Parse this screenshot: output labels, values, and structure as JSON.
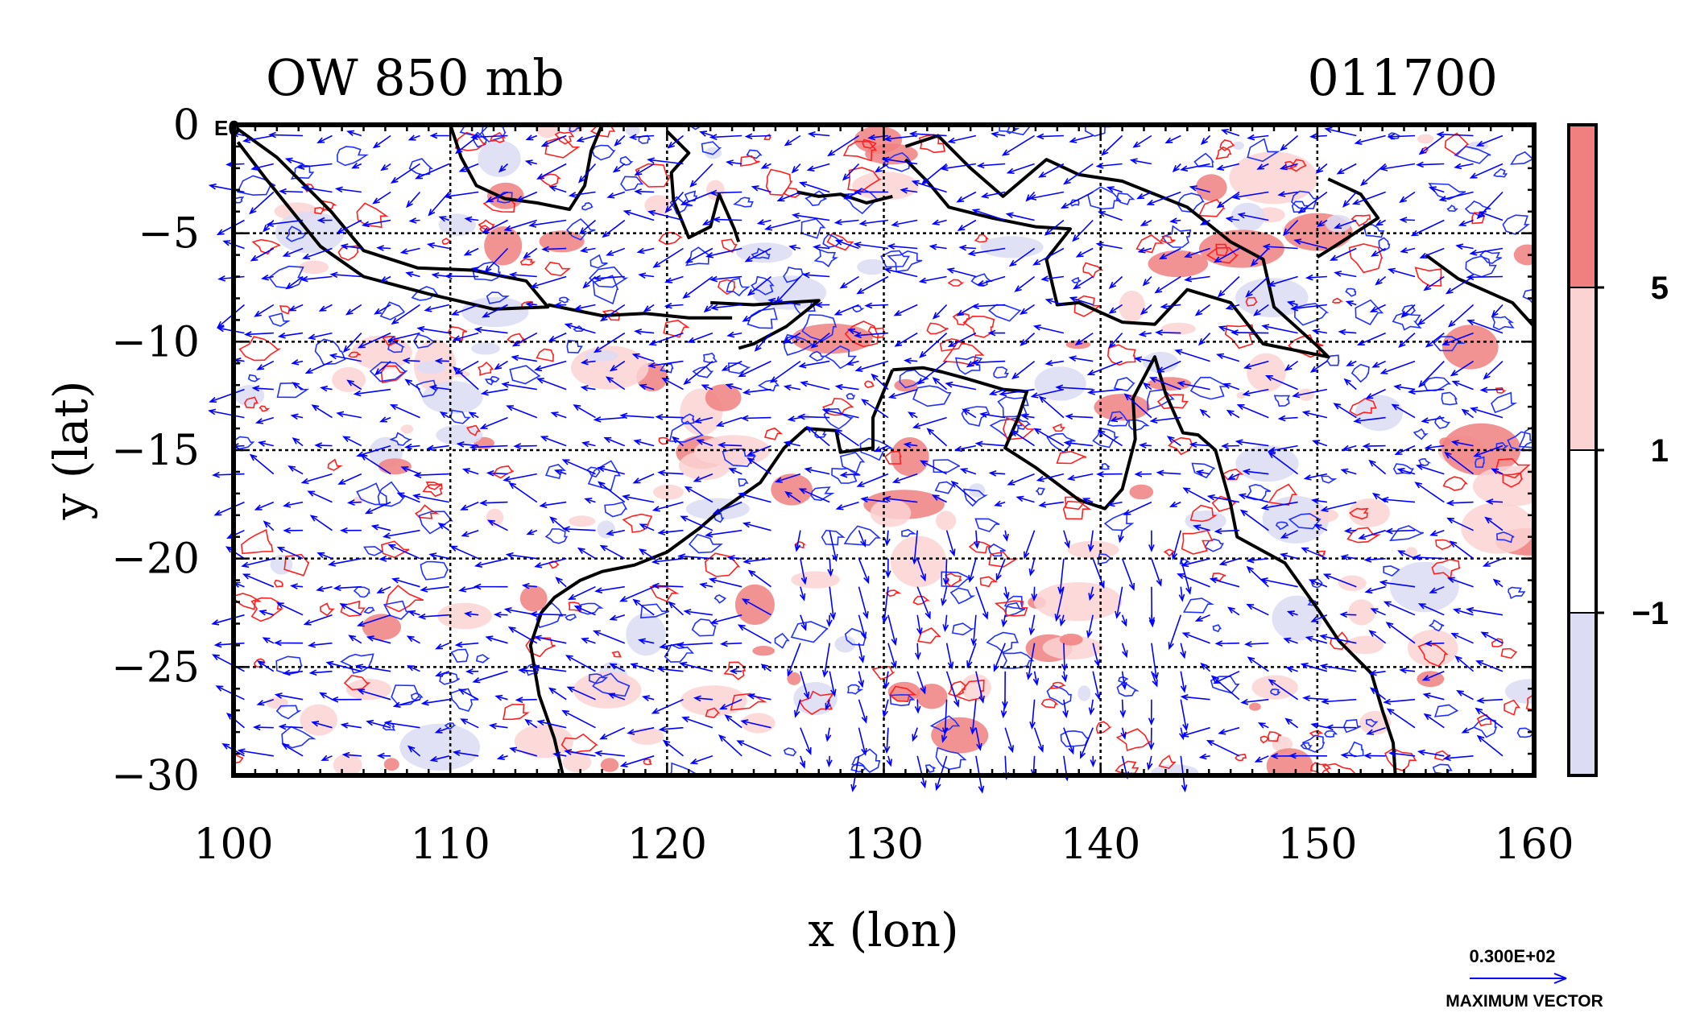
{
  "chart_data": {
    "type": "heatmap",
    "title_left": "OW 850 mb",
    "title_right": "011700",
    "xlabel": "x (lon)",
    "ylabel": "y (lat)",
    "xlim": [
      100,
      160
    ],
    "ylim": [
      -30,
      0
    ],
    "x_ticks": [
      100,
      110,
      120,
      130,
      140,
      150,
      160
    ],
    "x_tick_labels": [
      "100",
      "110",
      "120",
      "130",
      "140",
      "150",
      "160"
    ],
    "y_ticks": [
      0,
      -5,
      -10,
      -15,
      -20,
      -25,
      -30
    ],
    "y_tick_labels": [
      "0",
      "−5",
      "−10",
      "−15",
      "−20",
      "−25",
      "−30"
    ],
    "corner_label": "E0",
    "grid": true,
    "colorbar": {
      "levels": [
        "5",
        "1",
        "−1"
      ],
      "colors": [
        "#f08080",
        "#fcd3d3",
        "#ffffff",
        "#dcdcf5"
      ]
    },
    "vector_key": {
      "value_label": "0.300E+02",
      "caption": "MAXIMUM VECTOR",
      "max_speed": 30
    },
    "coastlines_lonlat": [
      [
        [
          100.2,
          -0.2
        ],
        [
          102,
          -1.5
        ],
        [
          104.5,
          -4
        ],
        [
          106,
          -5.8
        ],
        [
          108.5,
          -6.6
        ],
        [
          111,
          -6.7
        ],
        [
          113.5,
          -7.2
        ],
        [
          114.5,
          -8.4
        ],
        [
          112,
          -8.5
        ],
        [
          109,
          -7.8
        ],
        [
          106,
          -7
        ],
        [
          104,
          -5.6
        ],
        [
          101.5,
          -2.5
        ],
        [
          100.2,
          -0.8
        ]
      ],
      [
        [
          110,
          0
        ],
        [
          110.5,
          -1.5
        ],
        [
          111.2,
          -2.8
        ],
        [
          112.5,
          -3.4
        ],
        [
          114,
          -3.6
        ],
        [
          115.5,
          -3.9
        ],
        [
          116.2,
          -2.8
        ],
        [
          116.5,
          -1.2
        ],
        [
          117,
          0
        ]
      ],
      [
        [
          120,
          -0.3
        ],
        [
          121,
          -1.3
        ],
        [
          120.2,
          -2.2
        ],
        [
          120.3,
          -3.5
        ],
        [
          121,
          -5.2
        ],
        [
          122,
          -4.7
        ],
        [
          122.4,
          -3.2
        ],
        [
          123.1,
          -4.8
        ],
        [
          123.3,
          -5.4
        ]
      ],
      [
        [
          122,
          -8.2
        ],
        [
          124,
          -8.3
        ],
        [
          127,
          -8.1
        ],
        [
          125.5,
          -9.3
        ],
        [
          124,
          -10.1
        ],
        [
          123.3,
          -10.3
        ]
      ],
      [
        [
          114.5,
          -8.3
        ],
        [
          117,
          -8.8
        ],
        [
          119,
          -8.7
        ],
        [
          121,
          -8.9
        ],
        [
          123,
          -8.9
        ]
      ],
      [
        [
          126,
          -3.1
        ],
        [
          127,
          -3.3
        ],
        [
          128,
          -3.2
        ],
        [
          129.2,
          -3.6
        ],
        [
          130.4,
          -3.3
        ]
      ],
      [
        [
          131,
          -1
        ],
        [
          132.5,
          -0.5
        ],
        [
          134,
          -2
        ],
        [
          135.5,
          -3.3
        ],
        [
          137.5,
          -1.6
        ],
        [
          139,
          -2.3
        ],
        [
          141,
          -2.6
        ],
        [
          144,
          -3.8
        ],
        [
          146,
          -5.4
        ],
        [
          147.5,
          -6.2
        ],
        [
          148,
          -8.4
        ],
        [
          150,
          -10.2
        ],
        [
          150.5,
          -10.7
        ],
        [
          147.5,
          -10.1
        ],
        [
          146,
          -8.2
        ],
        [
          144,
          -7.6
        ],
        [
          142.5,
          -9.2
        ],
        [
          141,
          -9.1
        ],
        [
          139,
          -8.2
        ],
        [
          138,
          -8.3
        ],
        [
          137.5,
          -6.2
        ],
        [
          138.6,
          -4.8
        ],
        [
          137,
          -4.7
        ],
        [
          135,
          -4.3
        ],
        [
          133,
          -3.8
        ],
        [
          132,
          -2.6
        ],
        [
          131,
          -1.6
        ]
      ],
      [
        [
          150.5,
          -2.5
        ],
        [
          152,
          -3.2
        ],
        [
          152.8,
          -4.3
        ],
        [
          150.8,
          -5.6
        ],
        [
          150,
          -6.1
        ]
      ],
      [
        [
          155,
          -6
        ],
        [
          156.5,
          -7.1
        ],
        [
          159,
          -8.2
        ],
        [
          160,
          -9.3
        ]
      ],
      [
        [
          130.4,
          -11.3
        ],
        [
          131.8,
          -11.2
        ],
        [
          132.7,
          -11.4
        ],
        [
          133.8,
          -11.7
        ],
        [
          135.5,
          -12.2
        ],
        [
          136.6,
          -12.3
        ],
        [
          136.2,
          -13.5
        ],
        [
          135.6,
          -14.9
        ],
        [
          137,
          -15.8
        ],
        [
          139,
          -17.3
        ],
        [
          140.2,
          -17.7
        ],
        [
          141,
          -16.8
        ],
        [
          141.6,
          -14.5
        ],
        [
          141.5,
          -12.6
        ],
        [
          142.5,
          -10.7
        ],
        [
          143,
          -12.4
        ],
        [
          143.8,
          -14.2
        ],
        [
          144.5,
          -14.3
        ],
        [
          145.3,
          -15
        ],
        [
          146,
          -17.5
        ],
        [
          146.3,
          -19
        ],
        [
          148.5,
          -20.2
        ],
        [
          150,
          -22.3
        ],
        [
          151,
          -23.8
        ],
        [
          152.5,
          -25.3
        ],
        [
          153,
          -27
        ],
        [
          153.5,
          -28.5
        ],
        [
          153.6,
          -30
        ]
      ],
      [
        [
          130.4,
          -11.3
        ],
        [
          129.5,
          -13.5
        ],
        [
          129.5,
          -14.9
        ],
        [
          128,
          -15.1
        ],
        [
          127.8,
          -14.1
        ],
        [
          126.4,
          -14
        ],
        [
          125.4,
          -14.9
        ],
        [
          124.3,
          -16.5
        ],
        [
          122.3,
          -17.9
        ],
        [
          121.5,
          -18.6
        ],
        [
          120,
          -19.7
        ],
        [
          118.5,
          -20.3
        ],
        [
          117,
          -20.6
        ],
        [
          116,
          -21
        ],
        [
          114.8,
          -21.8
        ],
        [
          114.2,
          -22.5
        ],
        [
          113.7,
          -24
        ],
        [
          114.1,
          -26.3
        ],
        [
          114.8,
          -28.3
        ],
        [
          115.2,
          -30
        ]
      ]
    ]
  }
}
